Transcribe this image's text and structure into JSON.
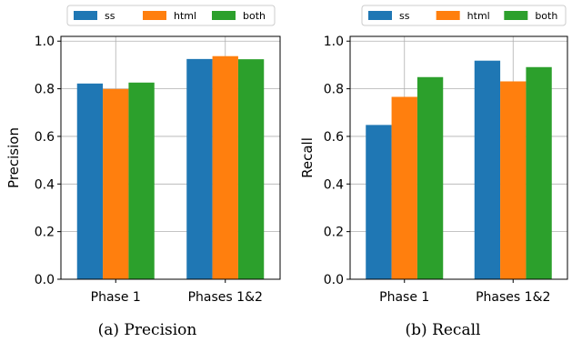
{
  "chart_data": [
    {
      "type": "bar",
      "caption": "(a) Precision",
      "ylabel": "Precision",
      "xlabel": "",
      "categories": [
        "Phase 1",
        "Phases 1&2"
      ],
      "ylim": [
        0,
        1.02
      ],
      "yticks": [
        "0.0",
        "0.2",
        "0.4",
        "0.6",
        "0.8",
        "1.0"
      ],
      "grid": true,
      "legend_position": "top",
      "series": [
        {
          "name": "ss",
          "color": "#1f77b4",
          "values": [
            0.822,
            0.925
          ]
        },
        {
          "name": "html",
          "color": "#ff7f0e",
          "values": [
            0.799,
            0.937
          ]
        },
        {
          "name": "both",
          "color": "#2ca02c",
          "values": [
            0.826,
            0.924
          ]
        }
      ]
    },
    {
      "type": "bar",
      "caption": "(b) Recall",
      "ylabel": "Recall",
      "xlabel": "",
      "categories": [
        "Phase 1",
        "Phases 1&2"
      ],
      "ylim": [
        0,
        1.02
      ],
      "yticks": [
        "0.0",
        "0.2",
        "0.4",
        "0.6",
        "0.8",
        "1.0"
      ],
      "grid": true,
      "legend_position": "top",
      "series": [
        {
          "name": "ss",
          "color": "#1f77b4",
          "values": [
            0.648,
            0.918
          ]
        },
        {
          "name": "html",
          "color": "#ff7f0e",
          "values": [
            0.766,
            0.831
          ]
        },
        {
          "name": "both",
          "color": "#2ca02c",
          "values": [
            0.849,
            0.891
          ]
        }
      ]
    }
  ]
}
